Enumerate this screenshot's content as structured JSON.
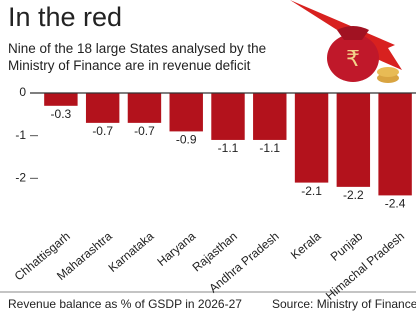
{
  "chart_data": {
    "type": "bar",
    "title": "In the red",
    "subtitle": "Nine of the 18 large States analysed by the Ministry of Finance are in revenue deficit",
    "categories": [
      "Chhattisgarh",
      "Maharashtra",
      "Karnataka",
      "Haryana",
      "Rajasthan",
      "Andhra Pradesh",
      "Kerala",
      "Punjab",
      "Himachal Pradesh"
    ],
    "values": [
      -0.3,
      -0.7,
      -0.7,
      -0.9,
      -1.1,
      -1.1,
      -2.1,
      -2.2,
      -2.4
    ],
    "color": "#b3121c",
    "ylim": [
      -3,
      0
    ],
    "yticks": [
      0,
      -1,
      -2
    ],
    "grid": false,
    "x_label": "Revenue balance as % of GSDP in 2026-27",
    "source": "Source: Ministry of Finance"
  }
}
